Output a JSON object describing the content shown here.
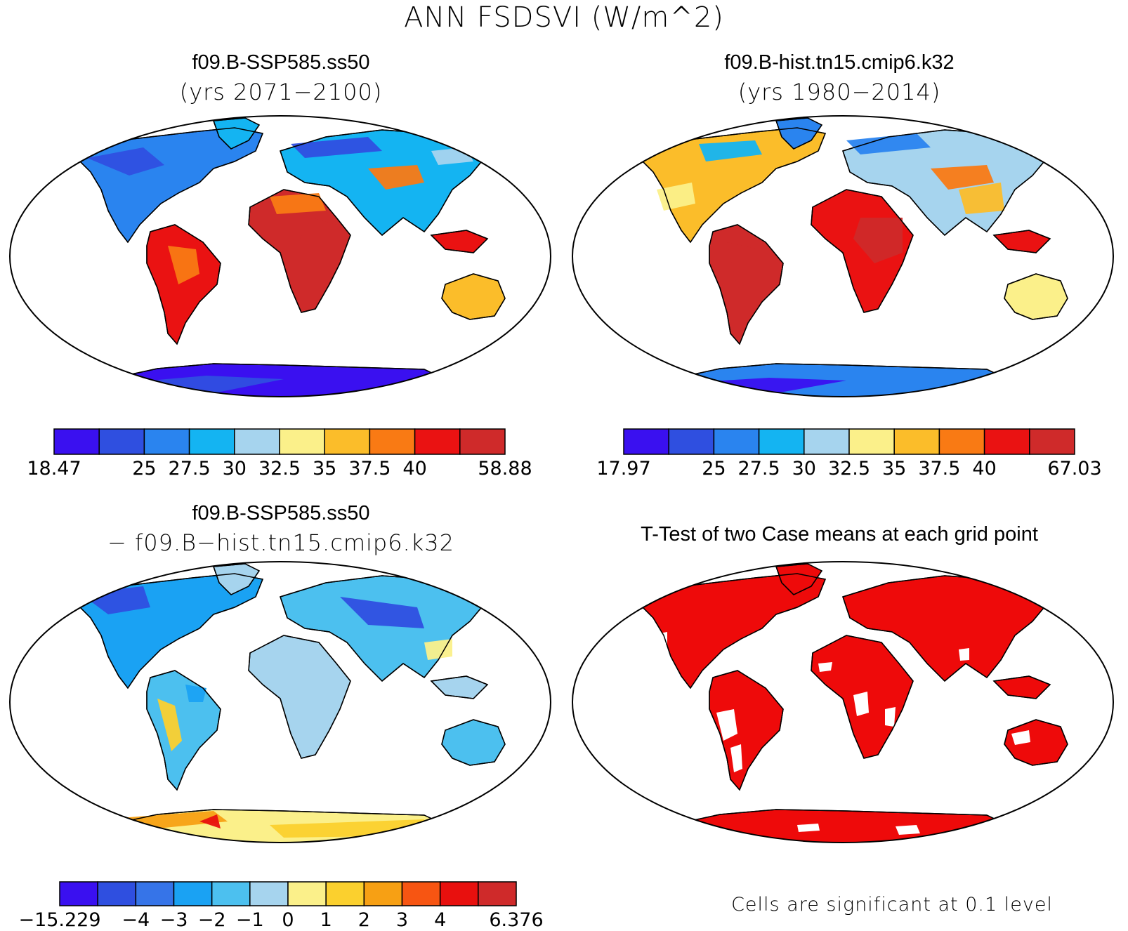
{
  "main_title": "ANN FSDSVI (W/m^2)",
  "panels": [
    {
      "title": "f09.B-SSP585.ss50",
      "subtitle": "(yrs 2071−2100)"
    },
    {
      "title": "f09.B-hist.tn15.cmip6.k32",
      "subtitle": "(yrs 1980−2014)"
    },
    {
      "title": "f09.B-SSP585.ss50",
      "subtitle": "− f09.B−hist.tn15.cmip6.k32"
    },
    {
      "title": "T-Test of two Case means at each grid point",
      "subtitle": ""
    }
  ],
  "colorbars": [
    {
      "colors": [
        "#3a10f0",
        "#2f4fe0",
        "#2a84ef",
        "#14b4f2",
        "#a6d4ee",
        "#fbf08a",
        "#fbbd2a",
        "#f97a14",
        "#ea1212",
        "#cf2a2a"
      ],
      "labels": [
        "18.47",
        "25",
        "27.5",
        "30",
        "32.5",
        "35",
        "37.5",
        "40",
        "58.88"
      ]
    },
    {
      "colors": [
        "#3a10f0",
        "#2f4fe0",
        "#2a84ef",
        "#14b4f2",
        "#a6d4ee",
        "#fbf08a",
        "#fbbd2a",
        "#f97a14",
        "#ea1212",
        "#cf2a2a"
      ],
      "labels": [
        "17.97",
        "25",
        "27.5",
        "30",
        "32.5",
        "35",
        "37.5",
        "40",
        "67.03"
      ]
    },
    {
      "colors": [
        "#3a10f0",
        "#2f4fe0",
        "#3674e8",
        "#1aa2f3",
        "#4cc0ef",
        "#a6d4ee",
        "#fbf08a",
        "#fbd02e",
        "#f7a014",
        "#f75512",
        "#e8100e",
        "#cf2a2a"
      ],
      "labels": [
        "−15.229",
        "−4",
        "−3",
        "−2",
        "−1",
        "0",
        "1",
        "2",
        "3",
        "4",
        "6.376"
      ]
    }
  ],
  "significance_note": "Cells are significant at 0.1 level",
  "significance_color": "#ee0a0a"
}
